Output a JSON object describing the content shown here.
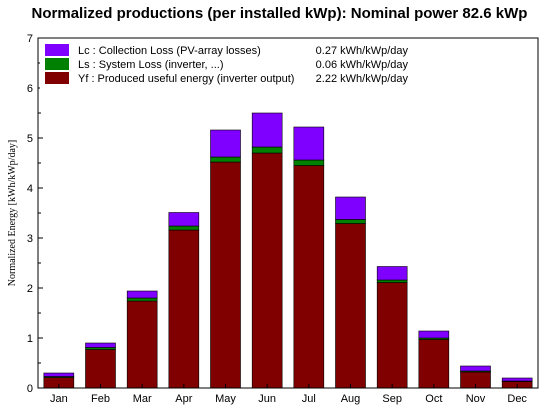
{
  "chart_data": {
    "type": "bar",
    "title": "Normalized productions (per installed kWp):  Nominal power 82.6 kWp",
    "xlabel": "",
    "ylabel": "Normalized Energy [kWh/kWp/day]",
    "ylim": [
      0,
      7
    ],
    "yticks": [
      0,
      1,
      2,
      3,
      4,
      5,
      6,
      7
    ],
    "categories": [
      "Jan",
      "Feb",
      "Mar",
      "Apr",
      "May",
      "Jun",
      "Jul",
      "Aug",
      "Sep",
      "Oct",
      "Nov",
      "Dec"
    ],
    "stacked": true,
    "grid": false,
    "legend_position": "top-left",
    "series": [
      {
        "key": "yf",
        "label": "Yf : Produced useful energy  (inverter output)",
        "value_text": "2.22 kWh/kWp/day",
        "color": "#800000",
        "values": [
          0.21,
          0.77,
          1.74,
          3.16,
          4.52,
          4.7,
          4.45,
          3.29,
          2.11,
          0.97,
          0.32,
          0.13
        ]
      },
      {
        "key": "ls",
        "label": "Ls : System Loss  (inverter, ...)",
        "value_text": "0.06 kWh/kWp/day",
        "color": "#008000",
        "values": [
          0.02,
          0.04,
          0.06,
          0.08,
          0.1,
          0.12,
          0.11,
          0.08,
          0.05,
          0.03,
          0.02,
          0.01
        ]
      },
      {
        "key": "lc",
        "label": "Lc : Collection Loss (PV-array losses)",
        "value_text": "0.27 kWh/kWp/day",
        "color": "#8000ff",
        "values": [
          0.07,
          0.09,
          0.14,
          0.27,
          0.54,
          0.68,
          0.66,
          0.45,
          0.27,
          0.14,
          0.1,
          0.06
        ]
      }
    ],
    "legend_order": [
      "lc",
      "ls",
      "yf"
    ]
  }
}
